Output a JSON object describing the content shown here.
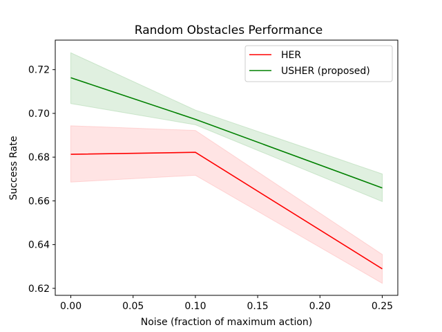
{
  "chart_data": {
    "type": "line",
    "title": "Random Obstacles Performance",
    "xlabel": "Noise (fraction of maximum action)",
    "ylabel": "Success Rate",
    "x": [
      0.0,
      0.1,
      0.25
    ],
    "xlim": [
      -0.0125,
      0.2625
    ],
    "ylim": [
      0.6168,
      0.7335
    ],
    "xticks": [
      0.0,
      0.05,
      0.1,
      0.15,
      0.2,
      0.25
    ],
    "xtick_labels": [
      "0.00",
      "0.05",
      "0.10",
      "0.15",
      "0.20",
      "0.25"
    ],
    "yticks": [
      0.62,
      0.64,
      0.66,
      0.68,
      0.7,
      0.72
    ],
    "ytick_labels": [
      "0.62",
      "0.64",
      "0.66",
      "0.68",
      "0.70",
      "0.72"
    ],
    "grid": false,
    "legend_position": "top-right",
    "series": [
      {
        "name": "HER",
        "color": "#ff0000",
        "band_color": "#ffb3b3",
        "values": [
          0.6813,
          0.6822,
          0.6289
        ],
        "lower": [
          0.6686,
          0.6717,
          0.6223
        ],
        "upper": [
          0.6943,
          0.6922,
          0.6355
        ]
      },
      {
        "name": "USHER (proposed)",
        "color": "#008000",
        "band_color": "#a6d3a6",
        "values": [
          0.7163,
          0.6973,
          0.6659
        ],
        "lower": [
          0.7045,
          0.6948,
          0.6597
        ],
        "upper": [
          0.7277,
          0.7015,
          0.6723
        ]
      }
    ]
  }
}
